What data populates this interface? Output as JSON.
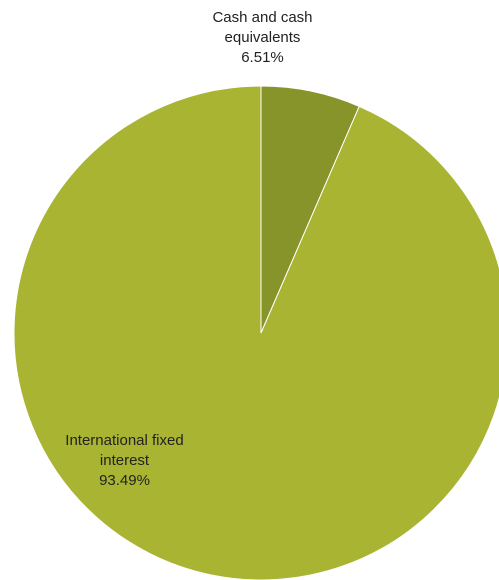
{
  "chart_data": {
    "type": "pie",
    "slices": [
      {
        "name": "Cash and cash equivalents",
        "value": 6.51,
        "label": "6.51%",
        "color": "#86942a"
      },
      {
        "name": "International fixed interest",
        "value": 93.49,
        "label": "93.49%",
        "color": "#a9b433"
      }
    ],
    "start_angle": "12 o'clock",
    "direction": "clockwise",
    "legend": "none",
    "labels": [
      {
        "name_lines": [
          "Cash and cash",
          "equivalents"
        ],
        "value": "6.51%"
      },
      {
        "name_lines": [
          "International fixed",
          "interest"
        ],
        "value": "93.49%"
      }
    ]
  }
}
